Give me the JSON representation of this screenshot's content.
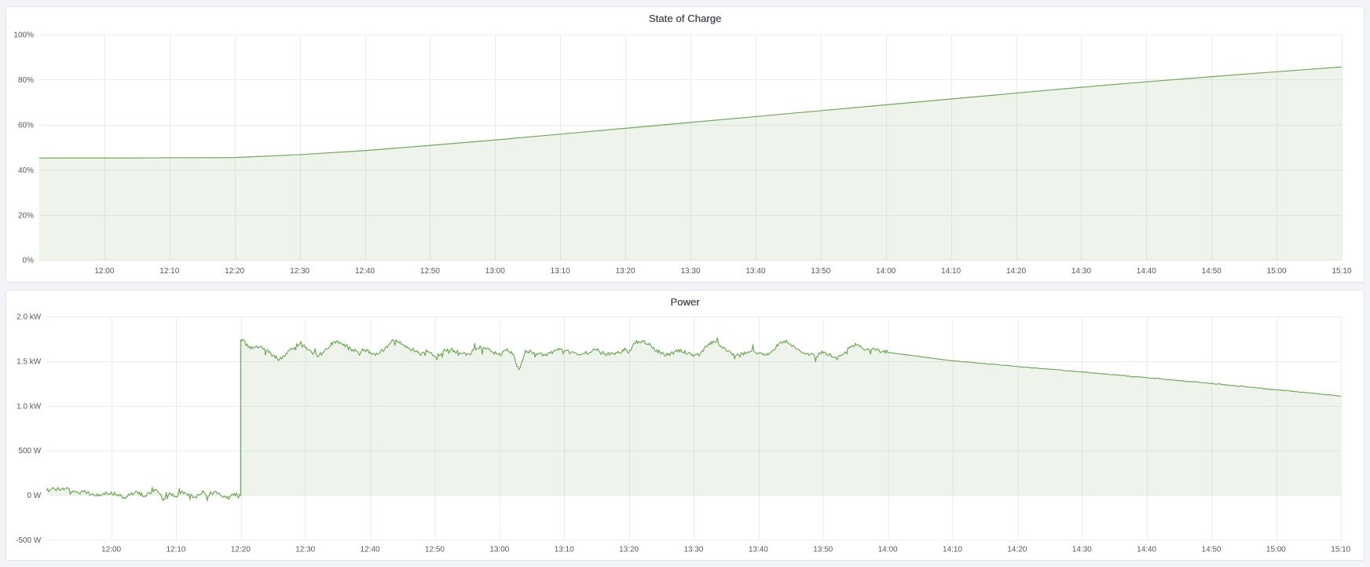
{
  "page": {
    "background": "#f3f4f7"
  },
  "chart_data": [
    {
      "type": "area",
      "title": "State of Charge",
      "unit": "percent",
      "x_start": "11:50",
      "x_end": "15:10",
      "x_ticks": [
        "12:00",
        "12:10",
        "12:20",
        "12:30",
        "12:40",
        "12:50",
        "13:00",
        "13:10",
        "13:20",
        "13:30",
        "13:40",
        "13:50",
        "14:00",
        "14:10",
        "14:20",
        "14:30",
        "14:40",
        "14:50",
        "15:00",
        "15:10"
      ],
      "ylim": [
        0,
        100
      ],
      "y_ticks": [
        {
          "v": 0,
          "label": "0%"
        },
        {
          "v": 20,
          "label": "20%"
        },
        {
          "v": 40,
          "label": "40%"
        },
        {
          "v": 60,
          "label": "60%"
        },
        {
          "v": 80,
          "label": "80%"
        },
        {
          "v": 100,
          "label": "100%"
        }
      ],
      "grid": true,
      "legend": "none",
      "line_color": "#74a75c",
      "fill_color": "rgba(116,167,92,0.12)",
      "segments": [
        {
          "start": "11:50",
          "step_min": 10,
          "jitter": 0,
          "values": [
            45.3,
            45.3,
            45.4,
            45.5,
            46.8,
            48.6,
            50.9,
            53.3,
            55.9,
            58.5,
            61.1,
            63.7,
            66.3,
            68.9,
            71.5,
            74.1,
            76.7,
            79.1,
            81.4,
            83.6,
            85.7
          ]
        }
      ]
    },
    {
      "type": "area",
      "title": "Power",
      "unit": "watt",
      "x_start": "11:50",
      "x_end": "15:10",
      "x_ticks": [
        "12:00",
        "12:10",
        "12:20",
        "12:30",
        "12:40",
        "12:50",
        "13:00",
        "13:10",
        "13:20",
        "13:30",
        "13:40",
        "13:50",
        "14:00",
        "14:10",
        "14:20",
        "14:30",
        "14:40",
        "14:50",
        "15:00",
        "15:10"
      ],
      "ylim": [
        -500,
        2000
      ],
      "y_ticks": [
        {
          "v": -500,
          "label": "-500 W"
        },
        {
          "v": 0,
          "label": "0 W"
        },
        {
          "v": 500,
          "label": "500 W"
        },
        {
          "v": 1000,
          "label": "1.0 kW"
        },
        {
          "v": 1500,
          "label": "1.5 kW"
        },
        {
          "v": 2000,
          "label": "2.0 kW"
        }
      ],
      "grid": true,
      "legend": "none",
      "line_color": "#74a75c",
      "fill_color": "rgba(116,167,92,0.12)",
      "segments": [
        {
          "start": "11:50",
          "step_min": 1,
          "jitter": 22,
          "values": [
            65,
            75,
            60,
            70,
            45,
            25,
            35,
            15,
            -5,
            20,
            30,
            0,
            -25,
            15,
            45,
            -20,
            25,
            60,
            -45,
            20,
            -15,
            35,
            10,
            -30,
            25,
            -10,
            40,
            5,
            -25,
            10,
            5
          ]
        },
        {
          "start": "12:20",
          "step_min": 1,
          "jitter": 22,
          "values": [
            1750,
            1680,
            1640,
            1660,
            1620,
            1560,
            1520,
            1580,
            1640,
            1690,
            1660,
            1600,
            1560,
            1620,
            1700,
            1720,
            1680,
            1640,
            1610,
            1630,
            1600,
            1580,
            1620,
            1700,
            1740,
            1700,
            1650,
            1610,
            1580,
            1600,
            1560,
            1590,
            1640,
            1620,
            1600,
            1580,
            1620,
            1660,
            1640,
            1600,
            1580,
            1610,
            1590,
            1400,
            1620,
            1600,
            1580,
            1560,
            1600,
            1640,
            1620,
            1600,
            1590,
            1580,
            1610,
            1630,
            1600,
            1570,
            1590,
            1620,
            1600,
            1710,
            1730,
            1690,
            1630,
            1590,
            1570,
            1600,
            1620,
            1590,
            1560,
            1580,
            1660,
            1720,
            1680,
            1620,
            1580,
            1560,
            1590,
            1610,
            1580,
            1560,
            1600,
            1680,
            1730,
            1690,
            1640,
            1600,
            1570,
            1560,
            1590,
            1570,
            1550,
            1580,
            1640,
            1690,
            1660,
            1620,
            1630,
            1610,
            1600
          ]
        },
        {
          "start": "14:10",
          "step_min": 10,
          "jitter": 3,
          "values": [
            1505,
            1440,
            1380,
            1315,
            1250,
            1180,
            1110
          ]
        }
      ]
    }
  ]
}
